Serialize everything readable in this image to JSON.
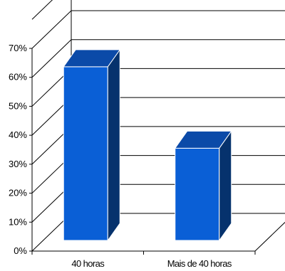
{
  "chart_data": {
    "type": "bar",
    "title": "",
    "xlabel": "",
    "ylabel": "",
    "categories": [
      "40 horas",
      "Mais de 40 horas"
    ],
    "values": [
      64,
      34
    ],
    "unit": "%",
    "ylim": [
      0,
      70
    ],
    "yticks": [
      "0%",
      "10%",
      "20%",
      "30%",
      "40%",
      "50%",
      "60%",
      "70%"
    ],
    "grid": true,
    "legend": "none",
    "three_d": true,
    "colors": {
      "bar_front": "#0a5fd6",
      "bar_top": "#0b4aa8",
      "bar_side": "#06326d",
      "bar_outline": "#ffffff"
    }
  }
}
